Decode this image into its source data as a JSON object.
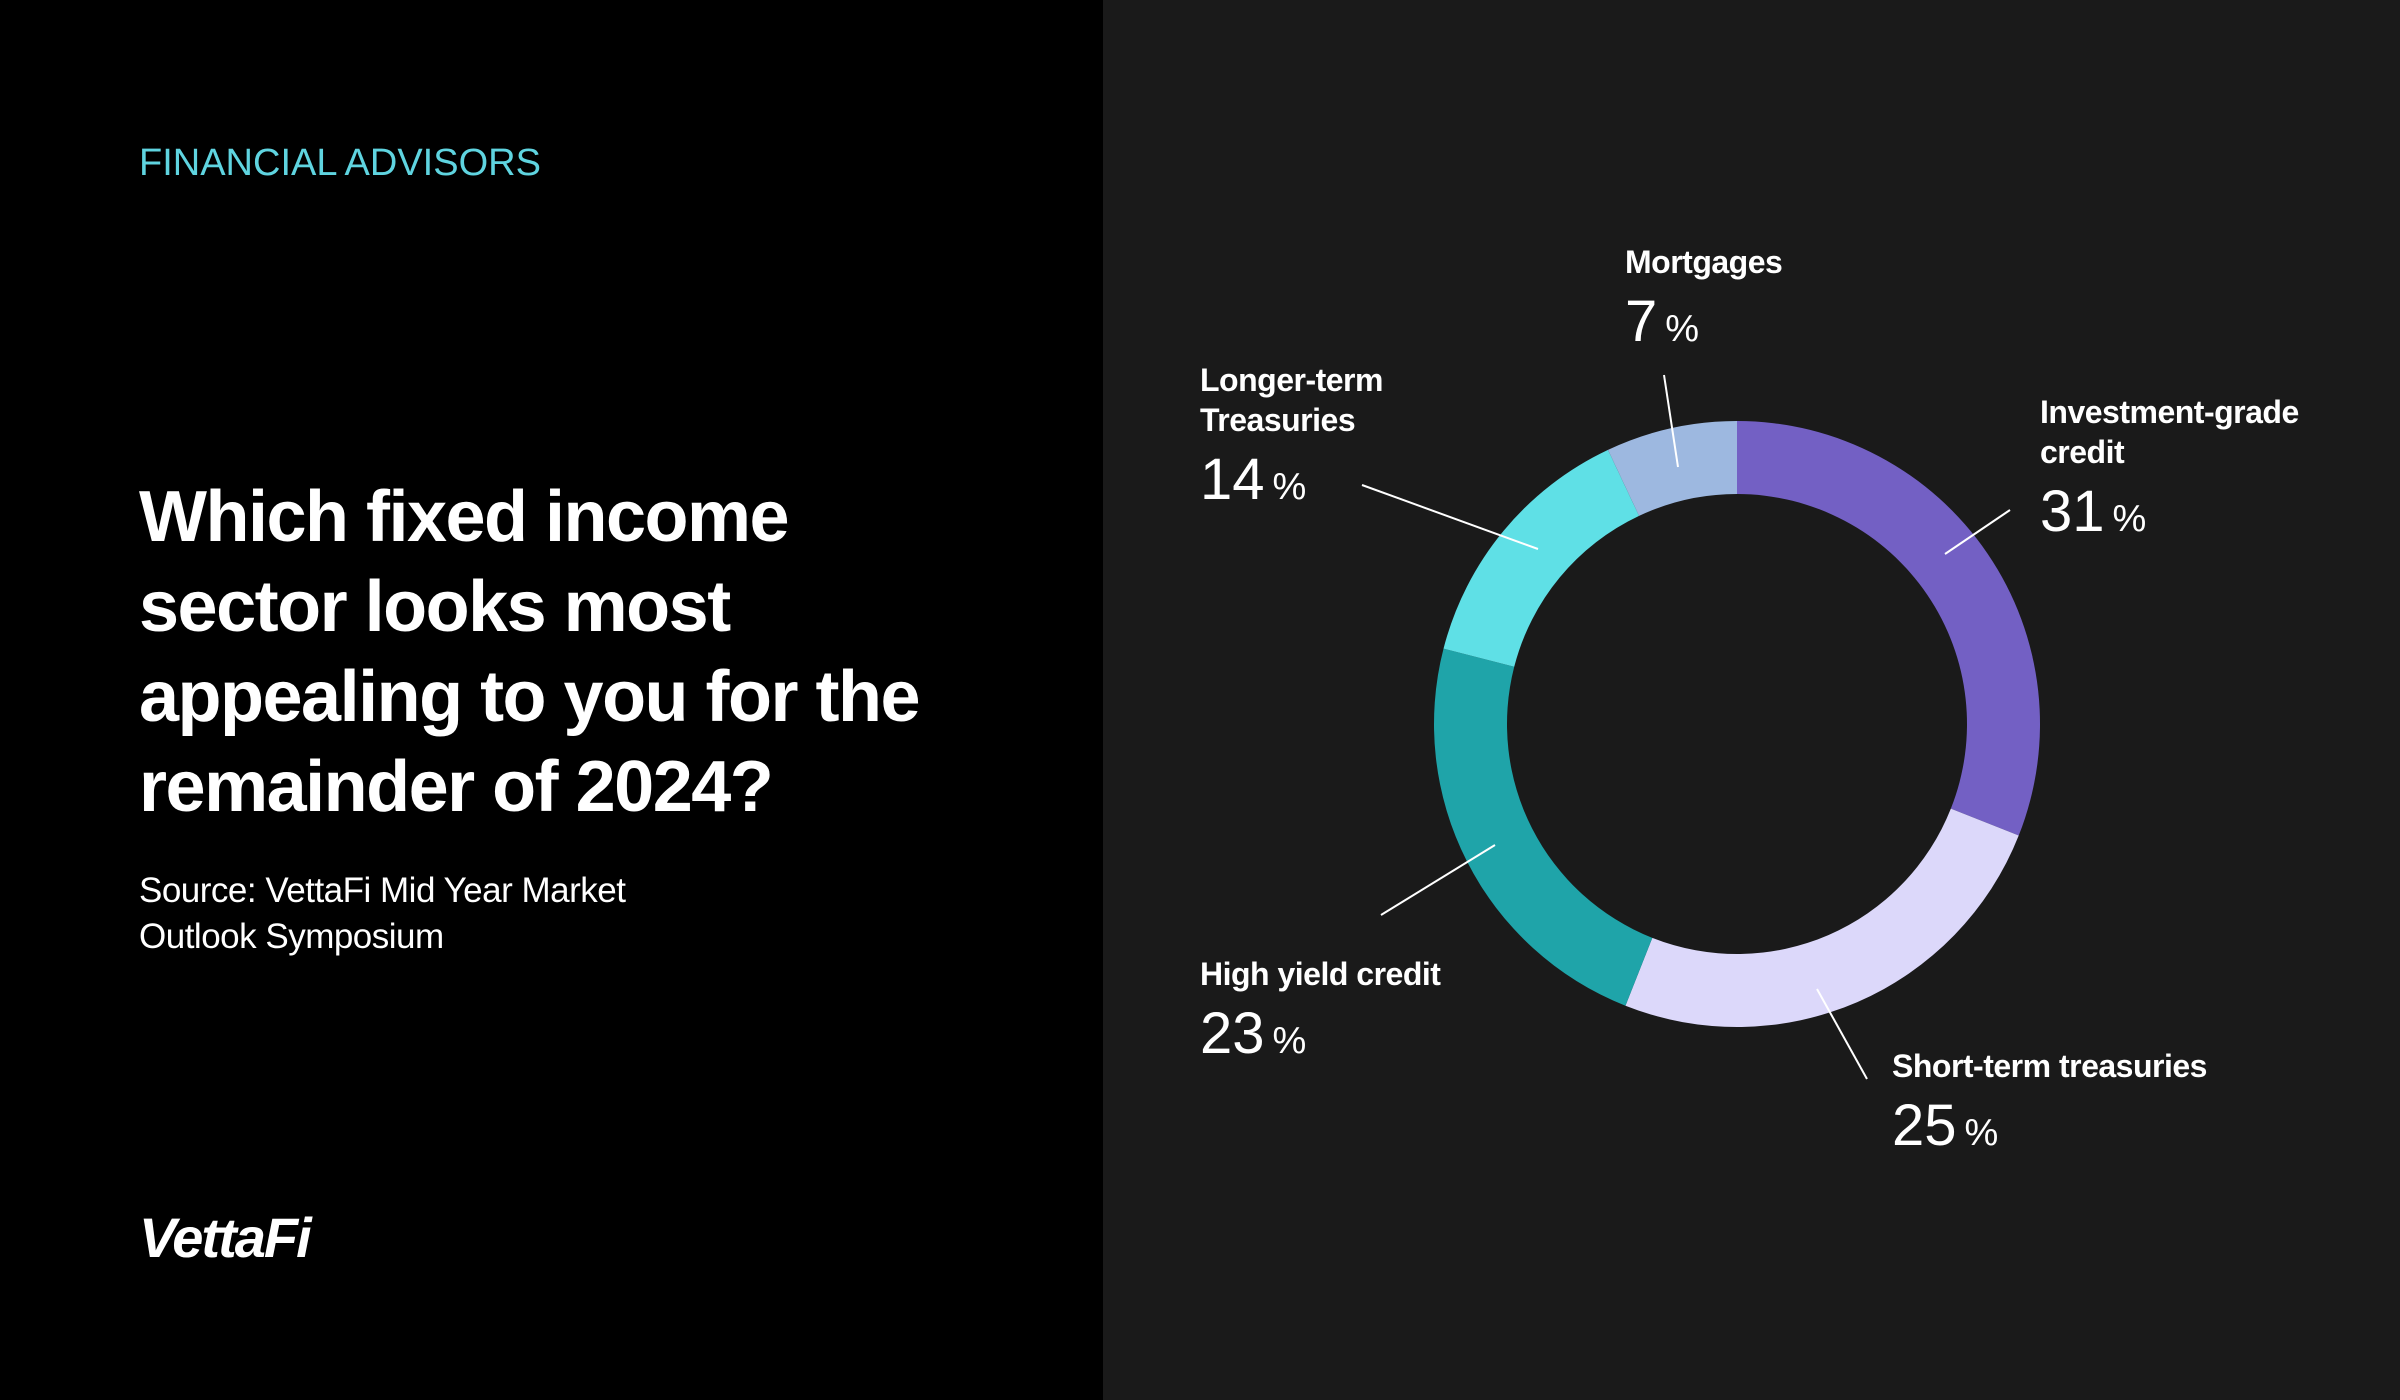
{
  "header": {
    "eyebrow": "FINANCIAL ADVISORS",
    "title": "Which fixed income sector looks most appealing to you for the remainder of 2024?",
    "source": "Source: VettaFi Mid Year Market Outlook Symposium",
    "logo": "VettaFi"
  },
  "chart_data": {
    "type": "donut",
    "categories": [
      "Investment-grade credit",
      "Short-term treasuries",
      "High yield credit",
      "Longer-term Treasuries",
      "Mortgages"
    ],
    "values": [
      31,
      25,
      23,
      14,
      7
    ],
    "colors": [
      "#7360c4",
      "#dcd8fa",
      "#1fa4a9",
      "#5fe0e6",
      "#9db8e0"
    ],
    "value_suffix": "%"
  }
}
